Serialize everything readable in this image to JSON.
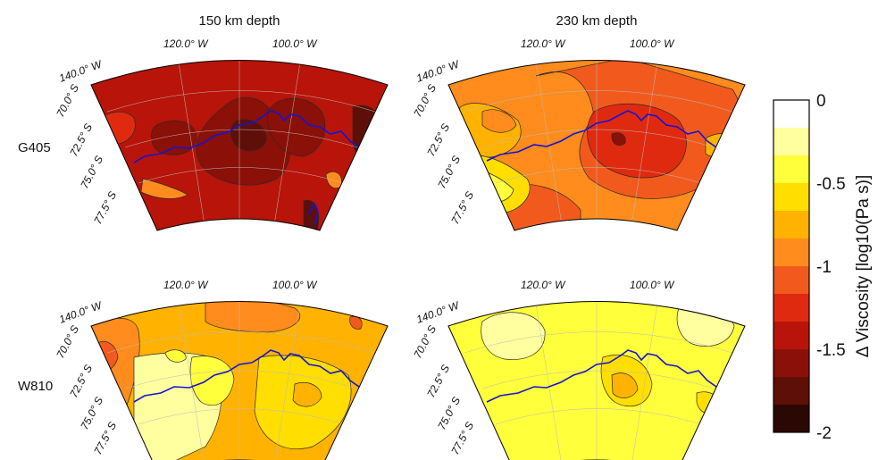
{
  "columns": [
    {
      "title": "150 km depth"
    },
    {
      "title": "230 km depth"
    }
  ],
  "rows": [
    {
      "label": "G405"
    },
    {
      "label": "W810"
    }
  ],
  "map_labels": {
    "lon_120": "120.0° W",
    "lon_100": "100.0° W",
    "lon_140": "140.0° W",
    "lat_70": "70.0° S",
    "lat_725": "72.5° S",
    "lat_75": "75.0° S",
    "lat_775": "77.5° S"
  },
  "colorbar": {
    "title": "Δ Viscosity [log10(Pa s)]",
    "ticks": [
      "0",
      "-0.5",
      "-1",
      "-1.5",
      "-2"
    ],
    "range": [
      -2,
      0
    ],
    "bands": [
      "#ffffff",
      "#ffff9f",
      "#ffff3c",
      "#ffde00",
      "#ffb300",
      "#ff8c1c",
      "#f25a1d",
      "#e02a10",
      "#b8140a",
      "#8a1008",
      "#5e0f07",
      "#2b0804"
    ]
  },
  "colors": {
    "coastline": "#1414d4",
    "contour": "#2a2a2a",
    "grid": "#bbbbbb"
  }
}
